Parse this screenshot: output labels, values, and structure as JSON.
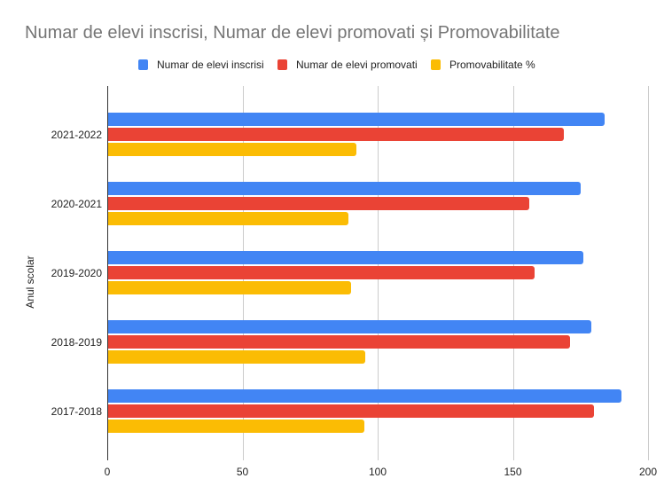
{
  "title": "Numar de elevi inscrisi, Numar de elevi promovati și Promovabilitate",
  "legend": [
    {
      "label": "Numar de elevi inscrisi",
      "color": "#4285f4"
    },
    {
      "label": "Numar de elevi promovati",
      "color": "#ea4335"
    },
    {
      "label": "Promovabilitate %",
      "color": "#fbbc04"
    }
  ],
  "axes": {
    "y_title": "Anul scolar",
    "x_ticks": [
      "0",
      "50",
      "100",
      "150",
      "200"
    ]
  },
  "chart_data": {
    "type": "bar",
    "orientation": "horizontal",
    "title": "Numar de elevi inscrisi, Numar de elevi promovati și Promovabilitate",
    "xlabel": "",
    "ylabel": "Anul scolar",
    "xlim": [
      0,
      200
    ],
    "x_ticks": [
      0,
      50,
      100,
      150,
      200
    ],
    "grid": true,
    "legend_position": "top",
    "categories": [
      "2021-2022",
      "2020-2021",
      "2019-2020",
      "2018-2019",
      "2017-2018"
    ],
    "series": [
      {
        "name": "Numar de elevi inscrisi",
        "color": "#4285f4",
        "values": [
          184,
          175,
          176,
          179,
          190
        ]
      },
      {
        "name": "Numar de elevi promovati",
        "color": "#ea4335",
        "values": [
          169,
          156,
          158,
          171,
          180
        ]
      },
      {
        "name": "Promovabilitate %",
        "color": "#fbbc04",
        "values": [
          92,
          89.3,
          90,
          95.5,
          95
        ]
      }
    ]
  }
}
